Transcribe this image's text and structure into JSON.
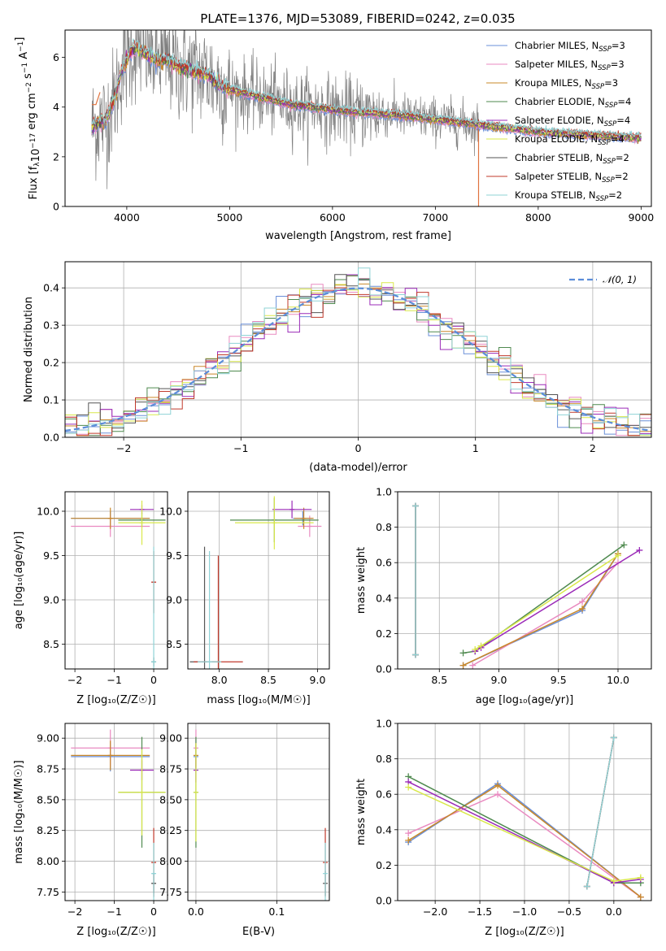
{
  "figure_title": "PLATE=1376, MJD=53089, FIBERID=0242, z=0.035",
  "colors": {
    "Chabrier MILES": "#6a8fd8",
    "Salpeter MILES": "#e98ac0",
    "Kroupa MILES": "#c9882a",
    "Chabrier ELODIE": "#4f8a4f",
    "Salpeter ELODIE": "#9b2bb8",
    "Kroupa ELODIE": "#d9e84a",
    "Chabrier STELIB": "#555555",
    "Salpeter STELIB": "#c0392b",
    "Kroupa STELIB": "#8fd3d6",
    "data": "#808080",
    "data_edge": "#e0733f",
    "gaussian": "#5b8dd9"
  },
  "chart_data": [
    {
      "id": "spectrum",
      "type": "line",
      "xlabel": "wavelength [Angstrom, rest frame]",
      "ylabel": "Flux [f_λ 10^-17 erg cm^-2 s^-1 A^-1]",
      "xlim": [
        3400,
        9100
      ],
      "ylim": [
        0,
        7.1
      ],
      "xticks": [
        4000,
        5000,
        6000,
        7000,
        8000,
        9000
      ],
      "yticks": [
        0,
        2,
        4,
        6
      ],
      "grid": false,
      "legend_position": "top-right",
      "legend": [
        {
          "model": "Chabrier MILES",
          "label": "Chabrier MILES, N",
          "sub": "SSP",
          "suffix": "=3"
        },
        {
          "model": "Salpeter MILES",
          "label": "Salpeter MILES, N",
          "sub": "SSP",
          "suffix": "=3"
        },
        {
          "model": "Kroupa MILES",
          "label": "Kroupa MILES, N",
          "sub": "SSP",
          "suffix": "=3"
        },
        {
          "model": "Chabrier ELODIE",
          "label": "Chabrier ELODIE, N",
          "sub": "SSP",
          "suffix": "=4"
        },
        {
          "model": "Salpeter ELODIE",
          "label": "Salpeter ELODIE, N",
          "sub": "SSP",
          "suffix": "=4"
        },
        {
          "model": "Kroupa ELODIE",
          "label": "Kroupa ELODIE, N",
          "sub": "SSP",
          "suffix": "=4"
        },
        {
          "model": "Chabrier STELIB",
          "label": "Chabrier STELIB, N",
          "sub": "SSP",
          "suffix": "=2"
        },
        {
          "model": "Salpeter STELIB",
          "label": "Salpeter STELIB, N",
          "sub": "SSP",
          "suffix": "=2"
        },
        {
          "model": "Kroupa STELIB",
          "label": "Kroupa STELIB, N",
          "sub": "SSP",
          "suffix": "=2"
        }
      ],
      "model_continuum": {
        "wavelength": [
          3660,
          3700,
          3750,
          3800,
          3850,
          3900,
          3950,
          4000,
          4050,
          4100,
          4200,
          4300,
          4400,
          4500,
          4600,
          4700,
          4800,
          4860,
          4900,
          5000,
          5100,
          5200,
          5400,
          5600,
          5800,
          6000,
          6200,
          6400,
          6600,
          6800,
          7000,
          7200,
          7400,
          7600,
          7800,
          8000,
          8200,
          8400,
          8600,
          8800,
          9000
        ],
        "flux": [
          3.2,
          3.3,
          3.4,
          3.5,
          4.0,
          4.6,
          5.5,
          5.9,
          6.3,
          6.4,
          6.1,
          5.9,
          5.9,
          5.6,
          5.5,
          5.4,
          5.3,
          5.0,
          4.9,
          4.7,
          4.6,
          4.5,
          4.3,
          4.1,
          4.0,
          3.9,
          3.8,
          3.75,
          3.7,
          3.6,
          3.5,
          3.4,
          3.3,
          3.2,
          3.1,
          3.0,
          2.95,
          2.9,
          2.85,
          2.8,
          2.75
        ]
      },
      "data_range": [
        3660,
        7420
      ]
    },
    {
      "id": "residuals",
      "type": "histogram",
      "xlabel": "(data-model)/error",
      "ylabel": "Normed distribution",
      "xlim": [
        -2.5,
        2.5
      ],
      "ylim": [
        0,
        0.47
      ],
      "xticks": [
        -2,
        -1,
        0,
        1,
        2
      ],
      "yticks": [
        0,
        0.1,
        0.2,
        0.3,
        0.4
      ],
      "grid": true,
      "legend_position": "top-right",
      "legend": [
        {
          "label": "𝒩(0, 1)",
          "style": "dashed"
        }
      ],
      "bin_width": 0.1,
      "gaussian": {
        "mean": 0,
        "sigma": 1
      }
    },
    {
      "id": "age-vs-Z",
      "type": "errorbar",
      "xlabel": "Z [log₁₀(Z/Z☉)]",
      "ylabel": "age  [log₁₀(age/yr)]",
      "xlim": [
        -2.25,
        0.35
      ],
      "ylim": [
        8.22,
        10.22
      ],
      "xticks": [
        -2,
        -1,
        0
      ],
      "yticks": [
        8.5,
        9.0,
        9.5,
        10.0
      ],
      "grid": true,
      "points": [
        {
          "model": "Chabrier MILES",
          "x": -1.1,
          "xerr": 1.0,
          "y": 9.92,
          "yerr": 0.08
        },
        {
          "model": "Salpeter MILES",
          "x": -1.1,
          "xerr": 1.0,
          "y": 9.83,
          "yerr": 0.12
        },
        {
          "model": "Kroupa MILES",
          "x": -1.1,
          "xerr": 1.0,
          "y": 9.92,
          "yerr": 0.12
        },
        {
          "model": "Chabrier ELODIE",
          "x": -0.3,
          "xerr": 0.6,
          "y": 9.9,
          "yerr": 0.08
        },
        {
          "model": "Salpeter ELODIE",
          "x": -0.3,
          "xerr": 0.3,
          "y": 10.02,
          "yerr": 0.05
        },
        {
          "model": "Kroupa ELODIE",
          "x": -0.3,
          "xerr": 0.6,
          "y": 9.87,
          "yerr": 0.25
        },
        {
          "model": "Chabrier STELIB",
          "x": 0.0,
          "xerr": 0.05,
          "y": 8.3,
          "yerr": 0.05
        },
        {
          "model": "Salpeter STELIB",
          "x": 0.0,
          "xerr": 0.05,
          "y": 9.2,
          "yerr": 0.35
        },
        {
          "model": "Kroupa STELIB",
          "x": 0.0,
          "xerr": 0.05,
          "y": 8.3,
          "yerr": 1.3
        }
      ]
    },
    {
      "id": "age-vs-mass",
      "type": "errorbar",
      "xlabel": "mass [log₁₀(M/M☉)]",
      "ylabel": "",
      "xlim": [
        7.68,
        9.12
      ],
      "ylim": [
        8.22,
        10.22
      ],
      "xticks": [
        8.0,
        8.5,
        9.0
      ],
      "yticks": [
        8.5,
        9.0,
        9.5,
        10.0
      ],
      "grid": true,
      "points": [
        {
          "model": "Chabrier MILES",
          "x": 8.85,
          "xerr": 0.1,
          "y": 9.92,
          "yerr": 0.08
        },
        {
          "model": "Salpeter MILES",
          "x": 8.92,
          "xerr": 0.12,
          "y": 9.83,
          "yerr": 0.12
        },
        {
          "model": "Kroupa MILES",
          "x": 8.86,
          "xerr": 0.1,
          "y": 9.92,
          "yerr": 0.12
        },
        {
          "model": "Chabrier ELODIE",
          "x": 8.56,
          "xerr": 0.45,
          "y": 9.9,
          "yerr": 0.25
        },
        {
          "model": "Salpeter ELODIE",
          "x": 8.74,
          "xerr": 0.2,
          "y": 10.02,
          "yerr": 0.1
        },
        {
          "model": "Kroupa ELODIE",
          "x": 8.56,
          "xerr": 0.4,
          "y": 9.87,
          "yerr": 0.3
        },
        {
          "model": "Chabrier STELIB",
          "x": 7.85,
          "xerr": 0.15,
          "y": 8.3,
          "yerr": 1.3
        },
        {
          "model": "Salpeter STELIB",
          "x": 7.99,
          "xerr": 0.25,
          "y": 8.3,
          "yerr": 1.2
        },
        {
          "model": "Kroupa STELIB",
          "x": 7.9,
          "xerr": 0.12,
          "y": 8.3,
          "yerr": 1.25
        }
      ]
    },
    {
      "id": "weight-vs-age",
      "type": "line",
      "xlabel": "age  [log₁₀(age/yr)]",
      "ylabel": "mass weight",
      "xlim": [
        8.15,
        10.28
      ],
      "ylim": [
        0,
        1.0
      ],
      "xticks": [
        8.5,
        9.0,
        9.5,
        10.0
      ],
      "yticks": [
        0.0,
        0.2,
        0.4,
        0.6,
        0.8,
        1.0
      ],
      "grid": true,
      "series": [
        {
          "model": "Chabrier MILES",
          "x": [
            8.7,
            9.7,
            10.0
          ],
          "y": [
            0.02,
            0.33,
            0.65
          ]
        },
        {
          "model": "Salpeter MILES",
          "x": [
            8.78,
            9.7,
            10.0
          ],
          "y": [
            0.02,
            0.38,
            0.6
          ]
        },
        {
          "model": "Kroupa MILES",
          "x": [
            8.7,
            9.7,
            10.0
          ],
          "y": [
            0.02,
            0.34,
            0.65
          ]
        },
        {
          "model": "Chabrier ELODIE",
          "x": [
            8.7,
            8.8,
            10.05
          ],
          "y": [
            0.09,
            0.1,
            0.7
          ]
        },
        {
          "model": "Salpeter ELODIE",
          "x": [
            8.8,
            8.85,
            10.18
          ],
          "y": [
            0.1,
            0.12,
            0.67
          ]
        },
        {
          "model": "Kroupa ELODIE",
          "x": [
            8.8,
            8.85,
            10.0
          ],
          "y": [
            0.11,
            0.13,
            0.64
          ]
        },
        {
          "model": "Chabrier STELIB",
          "x": [
            8.3,
            8.3
          ],
          "y": [
            0.08,
            0.92
          ]
        },
        {
          "model": "Salpeter STELIB",
          "x": [
            8.3,
            8.3
          ],
          "y": [
            0.08,
            0.92
          ]
        },
        {
          "model": "Kroupa STELIB",
          "x": [
            8.3,
            8.3
          ],
          "y": [
            0.08,
            0.92
          ]
        }
      ]
    },
    {
      "id": "mass-vs-Z",
      "type": "errorbar",
      "xlabel": "Z [log₁₀(Z/Z☉)]",
      "ylabel": "mass [log₁₀(M/M☉)]",
      "xlim": [
        -2.25,
        0.35
      ],
      "ylim": [
        7.68,
        9.12
      ],
      "xticks": [
        -2,
        -1,
        0
      ],
      "yticks": [
        7.75,
        8.0,
        8.25,
        8.5,
        8.75,
        9.0
      ],
      "grid": true,
      "points": [
        {
          "model": "Chabrier MILES",
          "x": -1.1,
          "xerr": 1.0,
          "y": 8.85,
          "yerr": 0.12
        },
        {
          "model": "Salpeter MILES",
          "x": -1.1,
          "xerr": 1.0,
          "y": 8.92,
          "yerr": 0.15
        },
        {
          "model": "Kroupa MILES",
          "x": -1.1,
          "xerr": 1.0,
          "y": 8.86,
          "yerr": 0.12
        },
        {
          "model": "Chabrier ELODIE",
          "x": -0.3,
          "xerr": 0.6,
          "y": 8.56,
          "yerr": 0.45
        },
        {
          "model": "Salpeter ELODIE",
          "x": -0.3,
          "xerr": 0.3,
          "y": 8.74,
          "yerr": 0.08
        },
        {
          "model": "Kroupa ELODIE",
          "x": -0.3,
          "xerr": 0.6,
          "y": 8.56,
          "yerr": 0.35
        },
        {
          "model": "Chabrier STELIB",
          "x": 0.0,
          "xerr": 0.05,
          "y": 7.82,
          "yerr": 0.08
        },
        {
          "model": "Salpeter STELIB",
          "x": 0.0,
          "xerr": 0.05,
          "y": 7.99,
          "yerr": 0.28
        },
        {
          "model": "Kroupa STELIB",
          "x": 0.0,
          "xerr": 0.05,
          "y": 7.9,
          "yerr": 0.25
        }
      ]
    },
    {
      "id": "mass-vs-ebv",
      "type": "errorbar",
      "xlabel": "E(B-V)",
      "ylabel": "",
      "xlim": [
        -0.01,
        0.165
      ],
      "ylim": [
        7.68,
        9.12
      ],
      "xticks": [
        0.0,
        0.1
      ],
      "yticks": [
        7.75,
        8.0,
        8.25,
        8.5,
        8.75,
        9.0
      ],
      "grid": true,
      "points": [
        {
          "model": "Chabrier MILES",
          "x": 0.0,
          "xerr": 0.0,
          "y": 8.85,
          "yerr": 0.1
        },
        {
          "model": "Salpeter MILES",
          "x": 0.0,
          "xerr": 0.0,
          "y": 8.92,
          "yerr": 0.15
        },
        {
          "model": "Kroupa MILES",
          "x": 0.0,
          "xerr": 0.0,
          "y": 8.86,
          "yerr": 0.1
        },
        {
          "model": "Chabrier ELODIE",
          "x": 0.0,
          "xerr": 0.0,
          "y": 8.56,
          "yerr": 0.45
        },
        {
          "model": "Salpeter ELODIE",
          "x": 0.0,
          "xerr": 0.0,
          "y": 8.74,
          "yerr": 0.1
        },
        {
          "model": "Kroupa ELODIE",
          "x": 0.0,
          "xerr": 0.0,
          "y": 8.56,
          "yerr": 0.4
        },
        {
          "model": "Chabrier STELIB",
          "x": 0.16,
          "xerr": 0.0,
          "y": 7.82,
          "yerr": 0.1
        },
        {
          "model": "Salpeter STELIB",
          "x": 0.16,
          "xerr": 0.0,
          "y": 7.99,
          "yerr": 0.28
        },
        {
          "model": "Kroupa STELIB",
          "x": 0.16,
          "xerr": 0.0,
          "y": 7.9,
          "yerr": 0.25
        }
      ]
    },
    {
      "id": "weight-vs-Z",
      "type": "line",
      "xlabel": "Z [log₁₀(Z/Z☉)]",
      "ylabel": "mass weight",
      "xlim": [
        -2.42,
        0.42
      ],
      "ylim": [
        0,
        1.0
      ],
      "xticks": [
        -2.0,
        -1.5,
        -1.0,
        -0.5,
        0.0
      ],
      "xticklabels": [
        "−2.0",
        "−1.5",
        "−1.0",
        "−0.5",
        "0.0"
      ],
      "yticks": [
        0.0,
        0.2,
        0.4,
        0.6,
        0.8,
        1.0
      ],
      "grid": true,
      "series": [
        {
          "model": "Chabrier MILES",
          "x": [
            -2.3,
            -1.3,
            0.3
          ],
          "y": [
            0.33,
            0.66,
            0.02
          ]
        },
        {
          "model": "Salpeter MILES",
          "x": [
            -2.3,
            -1.3,
            0.3
          ],
          "y": [
            0.38,
            0.6,
            0.02
          ]
        },
        {
          "model": "Kroupa MILES",
          "x": [
            -2.3,
            -1.3,
            0.3
          ],
          "y": [
            0.34,
            0.65,
            0.02
          ]
        },
        {
          "model": "Chabrier ELODIE",
          "x": [
            -2.3,
            0.0,
            0.3
          ],
          "y": [
            0.7,
            0.1,
            0.1
          ]
        },
        {
          "model": "Salpeter ELODIE",
          "x": [
            -2.3,
            0.0,
            0.3
          ],
          "y": [
            0.67,
            0.1,
            0.12
          ]
        },
        {
          "model": "Kroupa ELODIE",
          "x": [
            -2.3,
            0.0,
            0.3
          ],
          "y": [
            0.64,
            0.11,
            0.13
          ]
        },
        {
          "model": "Chabrier STELIB",
          "x": [
            -0.3,
            0.0
          ],
          "y": [
            0.08,
            0.92
          ]
        },
        {
          "model": "Salpeter STELIB",
          "x": [
            -0.3,
            0.0
          ],
          "y": [
            0.08,
            0.92
          ]
        },
        {
          "model": "Kroupa STELIB",
          "x": [
            -0.3,
            0.0
          ],
          "y": [
            0.08,
            0.92
          ]
        }
      ]
    }
  ]
}
